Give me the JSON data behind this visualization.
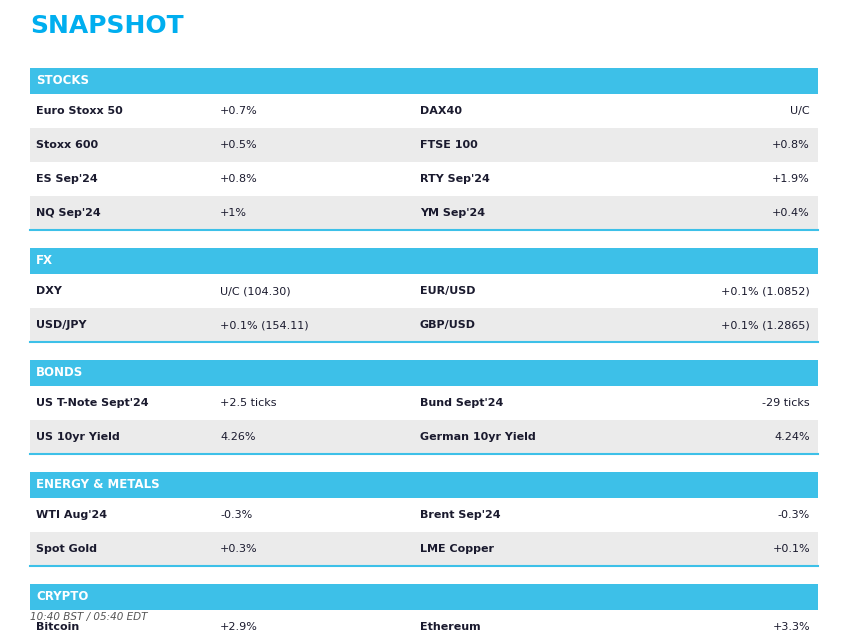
{
  "title": "SNAPSHOT",
  "title_color": "#00AEEF",
  "title_fontsize": 18,
  "footer": "10:40 BST / 05:40 EDT",
  "bg_color": "#FFFFFF",
  "header_bg": "#3DC0E8",
  "header_text_color": "#FFFFFF",
  "header_fontsize": 8.5,
  "row_even_bg": "#FFFFFF",
  "row_odd_bg": "#EBEBEB",
  "row_text_color": "#1A1A2E",
  "row_fontsize": 8,
  "border_color": "#3DC0E8",
  "sections": [
    {
      "header": "STOCKS",
      "rows": [
        [
          "Euro Stoxx 50",
          "+0.7%",
          "DAX40",
          "U/C"
        ],
        [
          "Stoxx 600",
          "+0.5%",
          "FTSE 100",
          "+0.8%"
        ],
        [
          "ES Sep'24",
          "+0.8%",
          "RTY Sep'24",
          "+1.9%"
        ],
        [
          "NQ Sep'24",
          "+1%",
          "YM Sep'24",
          "+0.4%"
        ]
      ]
    },
    {
      "header": "FX",
      "rows": [
        [
          "DXY",
          "U/C (104.30)",
          "EUR/USD",
          "+0.1% (1.0852)"
        ],
        [
          "USD/JPY",
          "+0.1% (154.11)",
          "GBP/USD",
          "+0.1% (1.2865)"
        ]
      ]
    },
    {
      "header": "BONDS",
      "rows": [
        [
          "US T-Note Sept'24",
          "+2.5 ticks",
          "Bund Sept'24",
          "-29 ticks"
        ],
        [
          "US 10yr Yield",
          "4.26%",
          "German 10yr Yield",
          "4.24%"
        ]
      ]
    },
    {
      "header": "ENERGY & METALS",
      "rows": [
        [
          "WTI Aug'24",
          "-0.3%",
          "Brent Sep'24",
          "-0.3%"
        ],
        [
          "Spot Gold",
          "+0.3%",
          "LME Copper",
          "+0.1%"
        ]
      ]
    },
    {
      "header": "CRYPTO",
      "rows": [
        [
          "Bitcoin",
          "+2.9%",
          "Ethereum",
          "+3.3%"
        ]
      ]
    }
  ]
}
